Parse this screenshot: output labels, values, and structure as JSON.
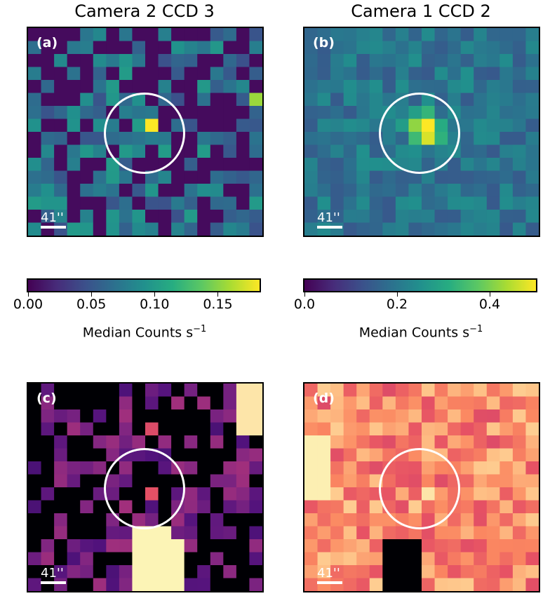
{
  "columns": {
    "left_title": "Camera 2 CCD 3",
    "right_title": "Camera 1 CCD 2"
  },
  "panels": [
    {
      "label": "(a)",
      "scale": "41''"
    },
    {
      "label": "(b)",
      "scale": "41''"
    },
    {
      "label": "(c)",
      "scale": "41''"
    },
    {
      "label": "(d)",
      "scale": "41''"
    }
  ],
  "colorbars": [
    {
      "ticks": [
        "0.00",
        "0.05",
        "0.10",
        "0.15"
      ],
      "tick_values": [
        0.0,
        0.05,
        0.1,
        0.15
      ],
      "range": [
        0,
        0.183
      ],
      "label": "Median Counts s",
      "label_sup": "−1",
      "cmap": "viridis"
    },
    {
      "ticks": [
        "0.0",
        "0.2",
        "0.4"
      ],
      "tick_values": [
        0.0,
        0.2,
        0.4
      ],
      "range": [
        0,
        0.5
      ],
      "label": "Median Counts s",
      "label_sup": "−1",
      "cmap": "viridis"
    }
  ],
  "colormaps": {
    "viridis": [
      "#440154",
      "#472c7a",
      "#3b518b",
      "#2c718e",
      "#21908d",
      "#27ad81",
      "#5cc863",
      "#aadc32",
      "#fde725"
    ],
    "magma": [
      "#000004",
      "#1d1147",
      "#51127c",
      "#822681",
      "#b63679",
      "#e65164",
      "#fb8861",
      "#fec287",
      "#fcfdbf"
    ]
  }
}
